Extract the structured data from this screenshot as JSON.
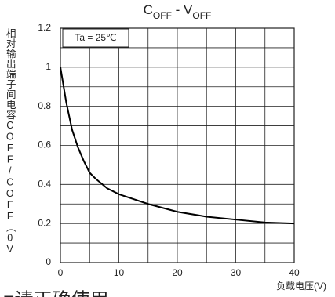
{
  "chart_data": {
    "type": "line",
    "title_parts": [
      "C",
      "OFF",
      " - V",
      "OFF"
    ],
    "y_label": "相对输出端子间电容COFF/COFF（0V",
    "x_label": "负载电压(V)",
    "annotation": "Ta = 25℃",
    "footer": "■请正确使用",
    "x": [
      0,
      1,
      2,
      3,
      4,
      5,
      6,
      8,
      10,
      15,
      20,
      25,
      30,
      35,
      40
    ],
    "series": [
      {
        "color": "#000000",
        "values": [
          1.0,
          0.82,
          0.68,
          0.59,
          0.52,
          0.46,
          0.43,
          0.38,
          0.35,
          0.3,
          0.26,
          0.235,
          0.22,
          0.205,
          0.2
        ]
      }
    ],
    "xlim": [
      0,
      40
    ],
    "xticks": [
      0,
      10,
      20,
      30,
      40
    ],
    "xminor": [
      5,
      15,
      25,
      35
    ],
    "ylim": [
      0,
      1.2
    ],
    "yticks": [
      0,
      0.2,
      0.4,
      0.6,
      0.8,
      1,
      1.2
    ],
    "yminor": [
      0.1,
      0.3,
      0.5,
      0.7,
      0.9,
      1.1
    ],
    "grid": true
  }
}
